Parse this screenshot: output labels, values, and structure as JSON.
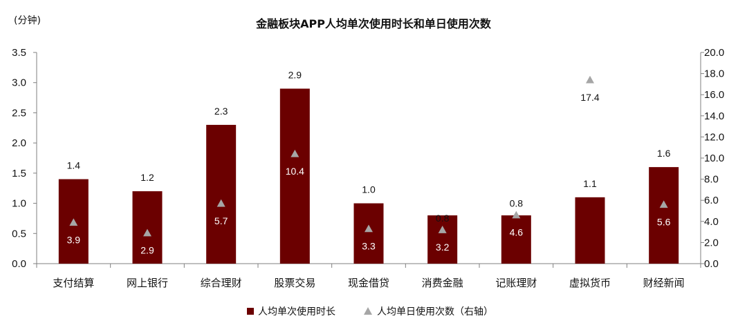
{
  "chart_data": {
    "type": "bar",
    "title": "金融板块APP人均单次使用时长和单日使用次数",
    "y_left_unit": "(分钟)",
    "categories": [
      "支付结算",
      "网上银行",
      "综合理财",
      "股票交易",
      "现金借贷",
      "消费金融",
      "记账理财",
      "虚拟货币",
      "财经新闻"
    ],
    "series": [
      {
        "name": "人均单次使用时长",
        "type": "bar",
        "axis": "left",
        "color": "#6b0000",
        "values": [
          1.4,
          1.2,
          2.3,
          2.9,
          1.0,
          0.8,
          0.8,
          1.1,
          1.6
        ],
        "value_labels": [
          "1.4",
          "1.2",
          "2.3",
          "2.9",
          "1.0",
          "0.8",
          "0.8",
          "1.1",
          "1.6"
        ]
      },
      {
        "name": "人均单日使用次数（右轴）",
        "type": "scatter",
        "axis": "right",
        "color": "#a6a6a6",
        "values": [
          3.9,
          2.9,
          5.7,
          10.4,
          3.3,
          3.2,
          4.6,
          17.4,
          5.6
        ],
        "value_labels": [
          "3.9",
          "2.9",
          "5.7",
          "10.4",
          "3.3",
          "3.2",
          "4.6",
          "17.4",
          "5.6"
        ]
      }
    ],
    "y_left": {
      "min": 0,
      "max": 3.5,
      "ticks": [
        "0.0",
        "0.5",
        "1.0",
        "1.5",
        "2.0",
        "2.5",
        "3.0",
        "3.5"
      ]
    },
    "y_right": {
      "min": 0,
      "max": 20,
      "ticks": [
        "0.0",
        "2.0",
        "4.0",
        "6.0",
        "8.0",
        "10.0",
        "12.0",
        "14.0",
        "16.0",
        "18.0",
        "20.0"
      ]
    },
    "grid": false,
    "legend": "bottom"
  }
}
